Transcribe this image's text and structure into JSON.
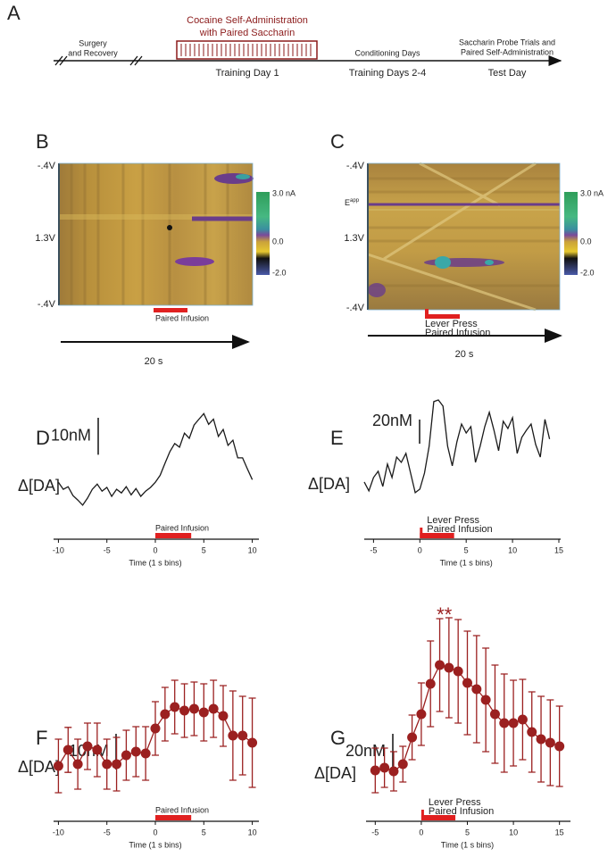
{
  "panel_labels": [
    "A",
    "B",
    "C",
    "D",
    "E",
    "F",
    "G"
  ],
  "timeline": {
    "surgery": [
      "Surgery",
      "and Recovery"
    ],
    "cocaine": [
      "Cocaine Self-Administration",
      "with Paired Saccharin"
    ],
    "training1": "Training Day 1",
    "conditioning": "Conditioning Days",
    "training24": "Training Days 2-4",
    "probe": [
      "Saccharin Probe Trials and",
      "Paired Self-Administration"
    ],
    "test": "Test Day"
  },
  "heatmaps": [
    {
      "y_labels": [
        "-.4V",
        "1.3V",
        "-.4V"
      ],
      "colorbar_labels": [
        "3.0 nA",
        "0.0",
        "-2.0"
      ],
      "event_labels": [
        "Paired Infusion"
      ],
      "time_label": "20 s"
    },
    {
      "y_labels": [
        "-.4V",
        "1.3V",
        "-.4V"
      ],
      "colorbar_labels": [
        "3.0 nA",
        "0.0",
        "-2.0"
      ],
      "event_labels": [
        "Lever Press",
        "Paired Infusion"
      ],
      "time_label": "20 s",
      "e_label": "E",
      "e_sup": "app"
    }
  ],
  "chart_data": [
    {
      "type": "line",
      "color": "#1a1a1a",
      "x": [
        -10,
        -9.5,
        -9,
        -8.5,
        -8,
        -7.5,
        -7,
        -6.5,
        -6,
        -5.5,
        -5,
        -4.5,
        -4,
        -3.5,
        -3,
        -2.5,
        -2,
        -1.5,
        -1,
        -0.5,
        0,
        0.5,
        1,
        1.5,
        2,
        2.5,
        3,
        3.5,
        4,
        4.5,
        5,
        5.5,
        6,
        6.5,
        7,
        7.5,
        8,
        8.5,
        9,
        9.5,
        10
      ],
      "values": [
        2.4,
        0.5,
        1.2,
        -1.2,
        -2.4,
        -3.8,
        -1.9,
        0.5,
        1.9,
        0,
        1,
        -1.4,
        0.5,
        -0.5,
        1.2,
        -1,
        0.7,
        -1.4,
        0,
        1,
        2.4,
        4.3,
        7.6,
        10.7,
        12.9,
        11.9,
        15.7,
        14.3,
        17.9,
        19.5,
        21,
        18.1,
        19.5,
        14.8,
        16.7,
        12.4,
        13.8,
        9,
        9,
        6,
        3.1
      ],
      "xlim": [
        -10.5,
        10.5
      ],
      "ylim": [
        -6,
        23
      ],
      "xticks": [
        -10,
        -5,
        0,
        5,
        10
      ],
      "xlabel": "Time (1 s bins)",
      "ylabel": "Δ[DA]",
      "scale_bar": {
        "value": 10,
        "label": "10nM"
      },
      "event_labels": [
        "Paired Infusion"
      ],
      "event_span": [
        0,
        3.7
      ]
    },
    {
      "type": "line",
      "color": "#1a1a1a",
      "x": [
        -6,
        -5.5,
        -5,
        -4.5,
        -4,
        -3.5,
        -3,
        -2.5,
        -2,
        -1.5,
        -1,
        -0.5,
        0,
        0.5,
        1,
        1.5,
        2,
        2.5,
        3,
        3.5,
        4,
        4.5,
        5,
        5.5,
        6,
        6.5,
        7,
        7.5,
        8,
        8.5,
        9,
        9.5,
        10,
        10.5,
        11,
        11.5,
        12,
        12.5,
        13,
        13.5,
        14
      ],
      "values": [
        0,
        -7.4,
        3.7,
        8.9,
        -3.7,
        14.8,
        3.7,
        20.7,
        16.3,
        23.7,
        7.4,
        -8.9,
        -5.9,
        7.4,
        29.6,
        66.7,
        68.1,
        63,
        29.6,
        13.3,
        33.3,
        48.1,
        40.7,
        45.9,
        16.3,
        29.6,
        45.9,
        57.8,
        43,
        25.9,
        50.4,
        44.4,
        53.3,
        23.7,
        37,
        43,
        48.1,
        31.1,
        20.7,
        51.9,
        35.6
      ],
      "xlim": [
        -6,
        15
      ],
      "ylim": [
        -26,
        74
      ],
      "xticks": [
        -5,
        0,
        5,
        10,
        15
      ],
      "xlabel": "Time (1 s bins)",
      "ylabel": "Δ[DA]",
      "scale_bar": {
        "value": 20,
        "label": "20nM"
      },
      "event_labels": [
        "Lever Press",
        "Paired Infusion"
      ],
      "event_span": [
        0,
        3.7
      ]
    },
    {
      "type": "errorbar",
      "color": "#9b2020",
      "x": [
        -10,
        -9,
        -8,
        -7,
        -6,
        -5,
        -4,
        -3,
        -2,
        -1,
        0,
        1,
        2,
        3,
        4,
        5,
        6,
        7,
        8,
        9,
        10
      ],
      "values": [
        0.5,
        5,
        1,
        6,
        5,
        1,
        1,
        3.5,
        4.5,
        4,
        11,
        15,
        17,
        16,
        16.5,
        15.5,
        16.5,
        14.5,
        9,
        9,
        7
      ],
      "errors": [
        7.5,
        6.3,
        7,
        6.5,
        7.5,
        7,
        7.5,
        7,
        7,
        7.5,
        7.5,
        7.5,
        7.5,
        7.5,
        7.5,
        8,
        8,
        8.5,
        12.5,
        11,
        12.5
      ],
      "xlim": [
        -10.5,
        10.5
      ],
      "ylim": [
        -10,
        25
      ],
      "xticks": [
        -10,
        -5,
        0,
        5,
        10
      ],
      "xlabel": "Time (1 s bins)",
      "ylabel": "Δ[DA]",
      "scale_bar": {
        "value": 10,
        "label": "10nM"
      },
      "event_labels": [
        "Paired Infusion"
      ],
      "event_span": [
        0,
        3.7
      ]
    },
    {
      "type": "errorbar",
      "color": "#9b2020",
      "x": [
        -5,
        -4,
        -3,
        -2,
        -1,
        0,
        1,
        2,
        3,
        4,
        5,
        6,
        7,
        8,
        9,
        10,
        11,
        12,
        13,
        14,
        15
      ],
      "values": [
        1.5,
        3,
        1,
        5,
        20,
        33,
        50,
        60.5,
        59,
        57,
        50.5,
        47,
        41,
        33,
        28,
        28,
        30,
        23,
        19,
        17,
        15
      ],
      "errors": [
        12.5,
        11,
        11,
        10,
        12.5,
        17.5,
        24,
        26,
        28,
        29,
        29,
        30,
        29,
        27.5,
        27.5,
        24,
        22.5,
        22.5,
        24,
        24,
        22.5
      ],
      "xlim": [
        -6,
        16
      ],
      "ylim": [
        -17,
        88
      ],
      "xticks": [
        -5,
        0,
        5,
        10,
        15
      ],
      "xlabel": "Time (1 s bins)",
      "ylabel": "Δ[DA]",
      "scale_bar": {
        "value": 20,
        "label": "20nM"
      },
      "event_labels": [
        "Lever Press",
        "Paired Infusion"
      ],
      "event_span": [
        0,
        3.7
      ],
      "annotation": "**"
    }
  ]
}
